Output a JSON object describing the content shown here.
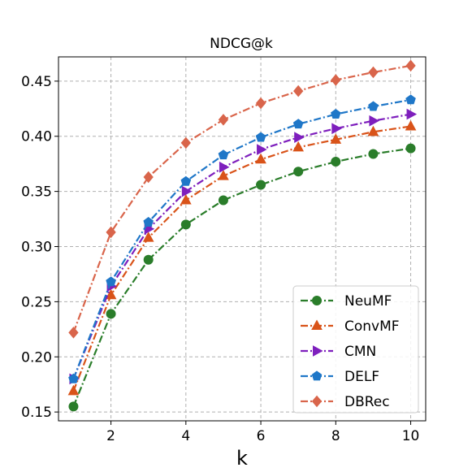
{
  "chart_data": {
    "type": "line",
    "title": "NDCG@k",
    "xlabel": "k",
    "ylabel": "",
    "xlim": [
      0.6,
      10.4
    ],
    "ylim": [
      0.142,
      0.472
    ],
    "xticks": [
      2,
      4,
      6,
      8,
      10
    ],
    "yticks": [
      0.15,
      0.2,
      0.25,
      0.3,
      0.35,
      0.4,
      0.45
    ],
    "grid": true,
    "legend_position": "lower-right",
    "x": [
      1,
      2,
      3,
      4,
      5,
      6,
      7,
      8,
      9,
      10
    ],
    "series": [
      {
        "name": "NeuMF",
        "color": "#2a7d2a",
        "marker": "circle",
        "linestyle": "dash-dot",
        "values": [
          0.155,
          0.239,
          0.288,
          0.32,
          0.342,
          0.356,
          0.368,
          0.377,
          0.384,
          0.389
        ]
      },
      {
        "name": "ConvMF",
        "color": "#d95319",
        "marker": "triangle-up",
        "linestyle": "dash-dot",
        "values": [
          0.169,
          0.256,
          0.308,
          0.342,
          0.364,
          0.379,
          0.39,
          0.397,
          0.404,
          0.409
        ]
      },
      {
        "name": "CMN",
        "color": "#7e1fbd",
        "marker": "triangle-right",
        "linestyle": "dash-dot",
        "values": [
          0.18,
          0.264,
          0.316,
          0.35,
          0.372,
          0.388,
          0.399,
          0.407,
          0.414,
          0.42
        ]
      },
      {
        "name": "DELF",
        "color": "#1f77c8",
        "marker": "pentagon",
        "linestyle": "dash-dot",
        "values": [
          0.18,
          0.268,
          0.322,
          0.359,
          0.383,
          0.399,
          0.411,
          0.42,
          0.427,
          0.433
        ]
      },
      {
        "name": "DBRec",
        "color": "#d9654b",
        "marker": "diamond",
        "linestyle": "dash-dot",
        "values": [
          0.222,
          0.313,
          0.363,
          0.394,
          0.415,
          0.43,
          0.441,
          0.451,
          0.458,
          0.464
        ]
      }
    ]
  }
}
